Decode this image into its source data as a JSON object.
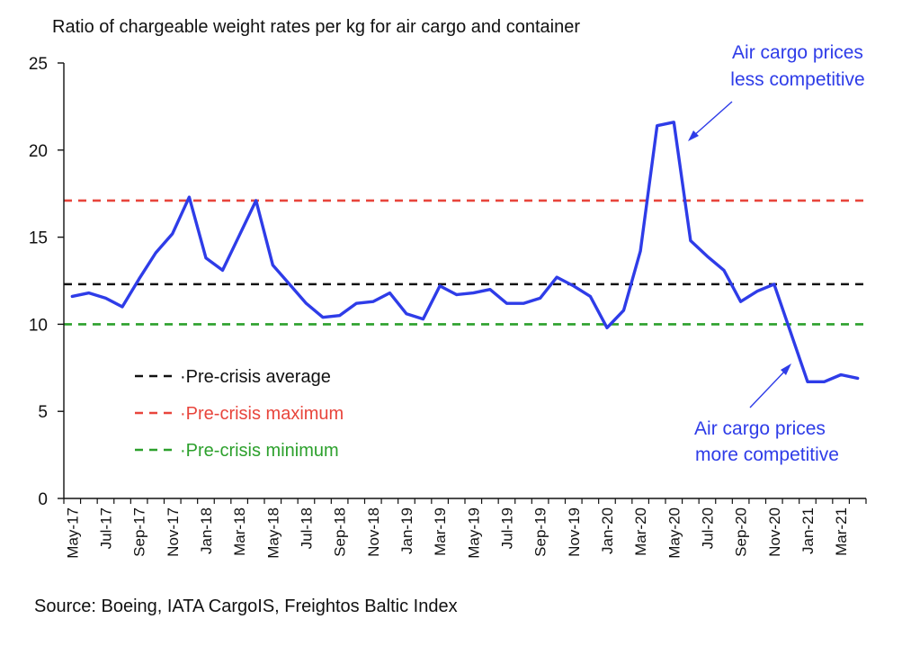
{
  "chart_data": {
    "type": "line",
    "title": "Ratio of chargeable weight rates per kg for air cargo and container",
    "source": "Source: Boeing, IATA CargoIS, Freightos Baltic Index",
    "ylim": [
      0,
      25
    ],
    "yticks": [
      0,
      5,
      10,
      15,
      20,
      25
    ],
    "x": [
      "May-17",
      "Jun-17",
      "Jul-17",
      "Aug-17",
      "Sep-17",
      "Oct-17",
      "Nov-17",
      "Dec-17",
      "Jan-18",
      "Feb-18",
      "Mar-18",
      "Apr-18",
      "May-18",
      "Jun-18",
      "Jul-18",
      "Aug-18",
      "Sep-18",
      "Oct-18",
      "Nov-18",
      "Dec-18",
      "Jan-19",
      "Feb-19",
      "Mar-19",
      "Apr-19",
      "May-19",
      "Jun-19",
      "Jul-19",
      "Aug-19",
      "Sep-19",
      "Oct-19",
      "Nov-19",
      "Dec-19",
      "Jan-20",
      "Feb-20",
      "Mar-20",
      "Apr-20",
      "May-20",
      "Jun-20",
      "Jul-20",
      "Aug-20",
      "Sep-20",
      "Oct-20",
      "Nov-20",
      "Dec-20",
      "Jan-21",
      "Feb-21",
      "Mar-21",
      "Apr-21"
    ],
    "xtick_labels": [
      "May-17",
      "Jul-17",
      "Sep-17",
      "Nov-17",
      "Jan-18",
      "Mar-18",
      "May-18",
      "Jul-18",
      "Sep-18",
      "Nov-18",
      "Jan-19",
      "Mar-19",
      "May-19",
      "Jul-19",
      "Sep-19",
      "Nov-19",
      "Jan-20",
      "Mar-20",
      "May-20",
      "Jul-20",
      "Sep-20",
      "Nov-20",
      "Jan-21",
      "Mar-21"
    ],
    "series": [
      {
        "values": [
          11.6,
          11.8,
          11.5,
          11.0,
          12.6,
          14.1,
          15.2,
          17.3,
          13.8,
          13.1,
          15.1,
          17.1,
          13.4,
          12.3,
          11.2,
          10.4,
          10.5,
          11.2,
          11.3,
          11.8,
          10.6,
          10.3,
          12.2,
          11.7,
          11.8,
          12.0,
          11.2,
          11.2,
          11.5,
          12.7,
          12.2,
          11.6,
          9.8,
          10.8,
          14.2,
          21.4,
          21.6,
          14.8,
          13.9,
          13.1,
          11.3,
          11.9,
          12.3,
          9.5,
          6.7,
          6.7,
          7.1,
          6.9
        ],
        "color": "#2E3CE8"
      }
    ],
    "reference_lines": [
      {
        "label": "Pre-crisis average",
        "value": 12.3,
        "color": "#111111"
      },
      {
        "label": "Pre-crisis maximum",
        "value": 17.1,
        "color": "#E8453C"
      },
      {
        "label": "Pre-crisis minimum",
        "value": 10.0,
        "color": "#2CA02C"
      }
    ],
    "annotations": [
      {
        "lines": [
          "Air cargo prices",
          "less competitive"
        ]
      },
      {
        "lines": [
          "Air cargo prices",
          "more competitive"
        ]
      }
    ],
    "colors": {
      "series": "#2E3CE8",
      "annotation": "#2E3CE8",
      "axis": "#111111"
    }
  }
}
